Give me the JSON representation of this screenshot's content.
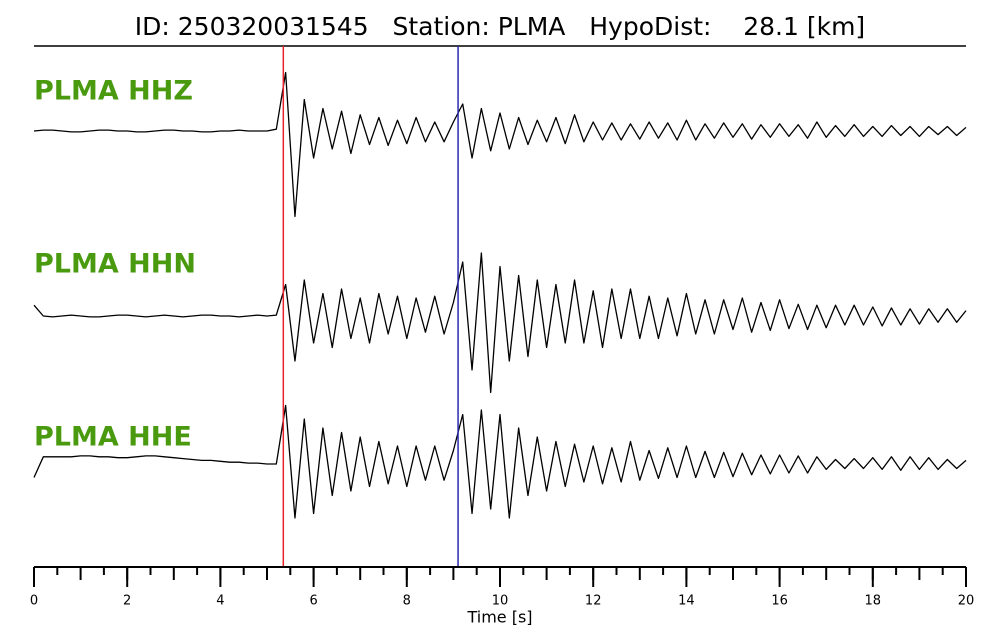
{
  "chart_data": {
    "type": "seismogram",
    "title": "ID: 250320031545   Station: PLMA   HypoDist:    28.1 [km]",
    "xlabel": "Time [s]",
    "xlim": [
      0,
      20
    ],
    "xticks": [
      0,
      2,
      4,
      6,
      8,
      10,
      12,
      14,
      16,
      18,
      20
    ],
    "xticks_minor": [
      0,
      0.5,
      1,
      1.5,
      2,
      2.5,
      3,
      3.5,
      4,
      4.5,
      5,
      5.5,
      6,
      6.5,
      7,
      7.5,
      8,
      8.5,
      9,
      9.5,
      10,
      10.5,
      11,
      11.5,
      12,
      12.5,
      13,
      13.5,
      14,
      14.5,
      15,
      15.5,
      16,
      16.5,
      17,
      17.5,
      18,
      18.5,
      19,
      19.5,
      20
    ],
    "ylim": [
      -1,
      1
    ],
    "picks": [
      {
        "time": 5.35,
        "color": "#e8232a"
      },
      {
        "time": 9.1,
        "color": "#2b2bb0"
      }
    ],
    "x": [
      0,
      0.2,
      0.4,
      0.6,
      0.8,
      1,
      1.2,
      1.4,
      1.6,
      1.8,
      2,
      2.2,
      2.4,
      2.6,
      2.8,
      3,
      3.2,
      3.4,
      3.6,
      3.8,
      4,
      4.2,
      4.4,
      4.6,
      4.8,
      5,
      5.2,
      5.4,
      5.6,
      5.8,
      6,
      6.2,
      6.4,
      6.6,
      6.8,
      7,
      7.2,
      7.4,
      7.6,
      7.8,
      8,
      8.2,
      8.4,
      8.6,
      8.8,
      9,
      9.2,
      9.4,
      9.6,
      9.8,
      10,
      10.2,
      10.4,
      10.6,
      10.8,
      11,
      11.2,
      11.4,
      11.6,
      11.8,
      12,
      12.2,
      12.4,
      12.6,
      12.8,
      13,
      13.2,
      13.4,
      13.6,
      13.8,
      14,
      14.2,
      14.4,
      14.6,
      14.8,
      15,
      15.2,
      15.4,
      15.6,
      15.8,
      16,
      16.2,
      16.4,
      16.6,
      16.8,
      17,
      17.2,
      17.4,
      17.6,
      17.8,
      18,
      18.2,
      18.4,
      18.6,
      18.8,
      19,
      19.2,
      19.4,
      19.6,
      19.8,
      20
    ],
    "label_color": "#4a9a0f",
    "trace_color": "#000000",
    "traces": [
      {
        "name": "PLMA HHZ",
        "values": [
          0,
          0.01,
          0.01,
          0,
          -0.01,
          -0.01,
          0,
          0.01,
          0.01,
          0,
          0,
          -0.01,
          -0.01,
          0,
          0.01,
          0.01,
          0,
          0,
          -0.01,
          -0.01,
          0,
          0,
          0.01,
          0,
          0,
          0,
          0.02,
          0.65,
          -0.95,
          0.35,
          -0.3,
          0.25,
          -0.2,
          0.22,
          -0.25,
          0.18,
          -0.15,
          0.15,
          -0.16,
          0.12,
          -0.14,
          0.15,
          -0.12,
          0.1,
          -0.12,
          0.1,
          0.3,
          -0.3,
          0.25,
          -0.22,
          0.2,
          -0.2,
          0.15,
          -0.15,
          0.12,
          -0.12,
          0.15,
          -0.14,
          0.18,
          -0.12,
          0.1,
          -0.1,
          0.09,
          -0.1,
          0.08,
          -0.09,
          0.1,
          -0.08,
          0.09,
          -0.1,
          0.12,
          -0.1,
          0.08,
          -0.08,
          0.09,
          -0.07,
          0.08,
          -0.09,
          0.07,
          -0.07,
          0.08,
          -0.06,
          0.07,
          -0.08,
          0.1,
          -0.07,
          0.06,
          -0.06,
          0.07,
          -0.06,
          0.05,
          -0.06,
          0.06,
          -0.05,
          0.05,
          -0.06,
          0.05,
          -0.04,
          0.05,
          -0.05,
          0.04
        ]
      },
      {
        "name": "PLMA HHN",
        "values": [
          0.12,
          0,
          -0.01,
          0,
          0.01,
          0,
          -0.01,
          -0.01,
          0,
          0.01,
          0.01,
          0,
          -0.01,
          0,
          0.01,
          0,
          -0.01,
          0,
          0.01,
          0.01,
          0,
          0,
          -0.01,
          0,
          0.01,
          0,
          0.01,
          0.35,
          -0.5,
          0.4,
          -0.3,
          0.25,
          -0.35,
          0.3,
          -0.25,
          0.2,
          -0.3,
          0.25,
          -0.2,
          0.22,
          -0.25,
          0.2,
          -0.18,
          0.22,
          -0.2,
          0.15,
          0.6,
          -0.6,
          0.7,
          -0.85,
          0.55,
          -0.5,
          0.45,
          -0.45,
          0.4,
          -0.35,
          0.35,
          -0.3,
          0.4,
          -0.3,
          0.28,
          -0.35,
          0.3,
          -0.25,
          0.3,
          -0.25,
          0.22,
          -0.25,
          0.2,
          -0.22,
          0.25,
          -0.2,
          0.18,
          -0.2,
          0.18,
          -0.15,
          0.2,
          -0.18,
          0.15,
          -0.16,
          0.18,
          -0.14,
          0.13,
          -0.15,
          0.12,
          -0.13,
          0.12,
          -0.1,
          0.12,
          -0.1,
          0.1,
          -0.11,
          0.09,
          -0.1,
          0.08,
          -0.09,
          0.08,
          -0.07,
          0.08,
          -0.07,
          0.06
        ]
      },
      {
        "name": "PLMA HHE",
        "values": [
          -0.15,
          0.08,
          0.08,
          0.08,
          0.08,
          0.09,
          0.09,
          0.08,
          0.08,
          0.07,
          0.07,
          0.08,
          0.09,
          0.09,
          0.08,
          0.07,
          0.06,
          0.05,
          0.04,
          0.04,
          0.03,
          0.02,
          0.02,
          0.01,
          0.01,
          0,
          0,
          0.65,
          -0.6,
          0.5,
          -0.55,
          0.4,
          -0.35,
          0.35,
          -0.3,
          0.3,
          -0.25,
          0.25,
          -0.22,
          0.2,
          -0.25,
          0.2,
          -0.18,
          0.2,
          -0.18,
          0.15,
          0.55,
          -0.55,
          0.6,
          -0.5,
          0.55,
          -0.6,
          0.4,
          -0.35,
          0.3,
          -0.3,
          0.25,
          -0.25,
          0.22,
          -0.2,
          0.2,
          -0.22,
          0.18,
          -0.2,
          0.25,
          -0.18,
          0.15,
          -0.16,
          0.18,
          -0.15,
          0.2,
          -0.15,
          0.14,
          -0.15,
          0.13,
          -0.14,
          0.12,
          -0.12,
          0.1,
          -0.11,
          0.1,
          -0.1,
          0.09,
          -0.1,
          0.08,
          -0.06,
          0.05,
          -0.05,
          0.06,
          -0.05,
          0.07,
          -0.06,
          0.08,
          -0.07,
          0.08,
          -0.06,
          0.07,
          -0.06,
          0.05,
          -0.05,
          0.04
        ]
      }
    ]
  }
}
